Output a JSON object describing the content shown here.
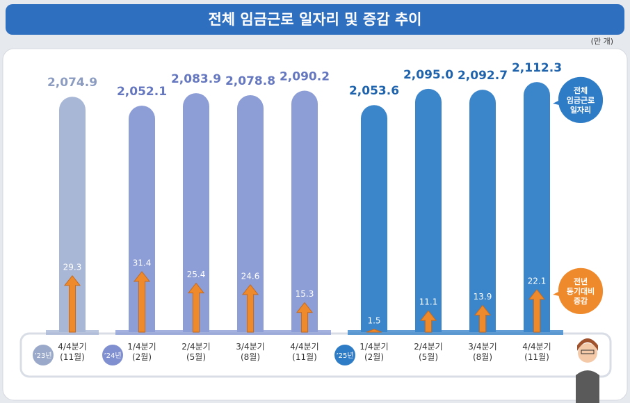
{
  "chart_data": {
    "type": "bar",
    "title": "전체 임금근로 일자리 및 증감 추이",
    "unit": "(만 개)",
    "categories": [
      "4/4분기\n(11월)",
      "1/4분기\n(2월)",
      "2/4분기\n(5월)",
      "3/4분기\n(8월)",
      "4/4분기\n(11월)",
      "1/4분기\n(2월)",
      "2/4분기\n(5월)",
      "3/4분기\n(8월)",
      "4/4분기\n(11월)"
    ],
    "year_labels": [
      "’23년",
      "’24년",
      null,
      null,
      null,
      "’25년",
      null,
      null,
      null
    ],
    "year_colors": [
      "#9aa9c9",
      "#7f8fd0",
      null,
      null,
      null,
      "#2f7cc6",
      null,
      null,
      null
    ],
    "ylim": [
      1475,
      2162
    ],
    "y2lim": [
      0,
      140
    ],
    "series": [
      {
        "name": "전체\n임금근로\n일자리",
        "color": "#2f7cc6",
        "colors": [
          "#a9b7d6",
          "#8d9dd6",
          "#8d9dd6",
          "#8d9dd6",
          "#8d9dd6",
          "#3b85cb",
          "#3b85cb",
          "#3b85cb",
          "#3b85cb"
        ],
        "label_colors": [
          "#8c9cc0",
          "#6577bf",
          "#6577bf",
          "#6577bf",
          "#6577bf",
          "#1f63ad",
          "#1f63ad",
          "#1f63ad",
          "#1f63ad"
        ],
        "values": [
          2074.9,
          2052.1,
          2083.9,
          2078.8,
          2090.2,
          2053.6,
          2095.0,
          2092.7,
          2112.3
        ],
        "value_labels": [
          "2,074.9",
          "2,052.1",
          "2,083.9",
          "2,078.8",
          "2,090.2",
          "2,053.6",
          "2,095.0",
          "2,092.7",
          "2,112.3"
        ]
      },
      {
        "name": "전년\n동기대비\n증감",
        "color": "#ef8a2c",
        "axis": "y2",
        "values": [
          29.3,
          31.4,
          25.4,
          24.6,
          15.3,
          1.5,
          11.1,
          13.9,
          22.1
        ]
      }
    ]
  }
}
